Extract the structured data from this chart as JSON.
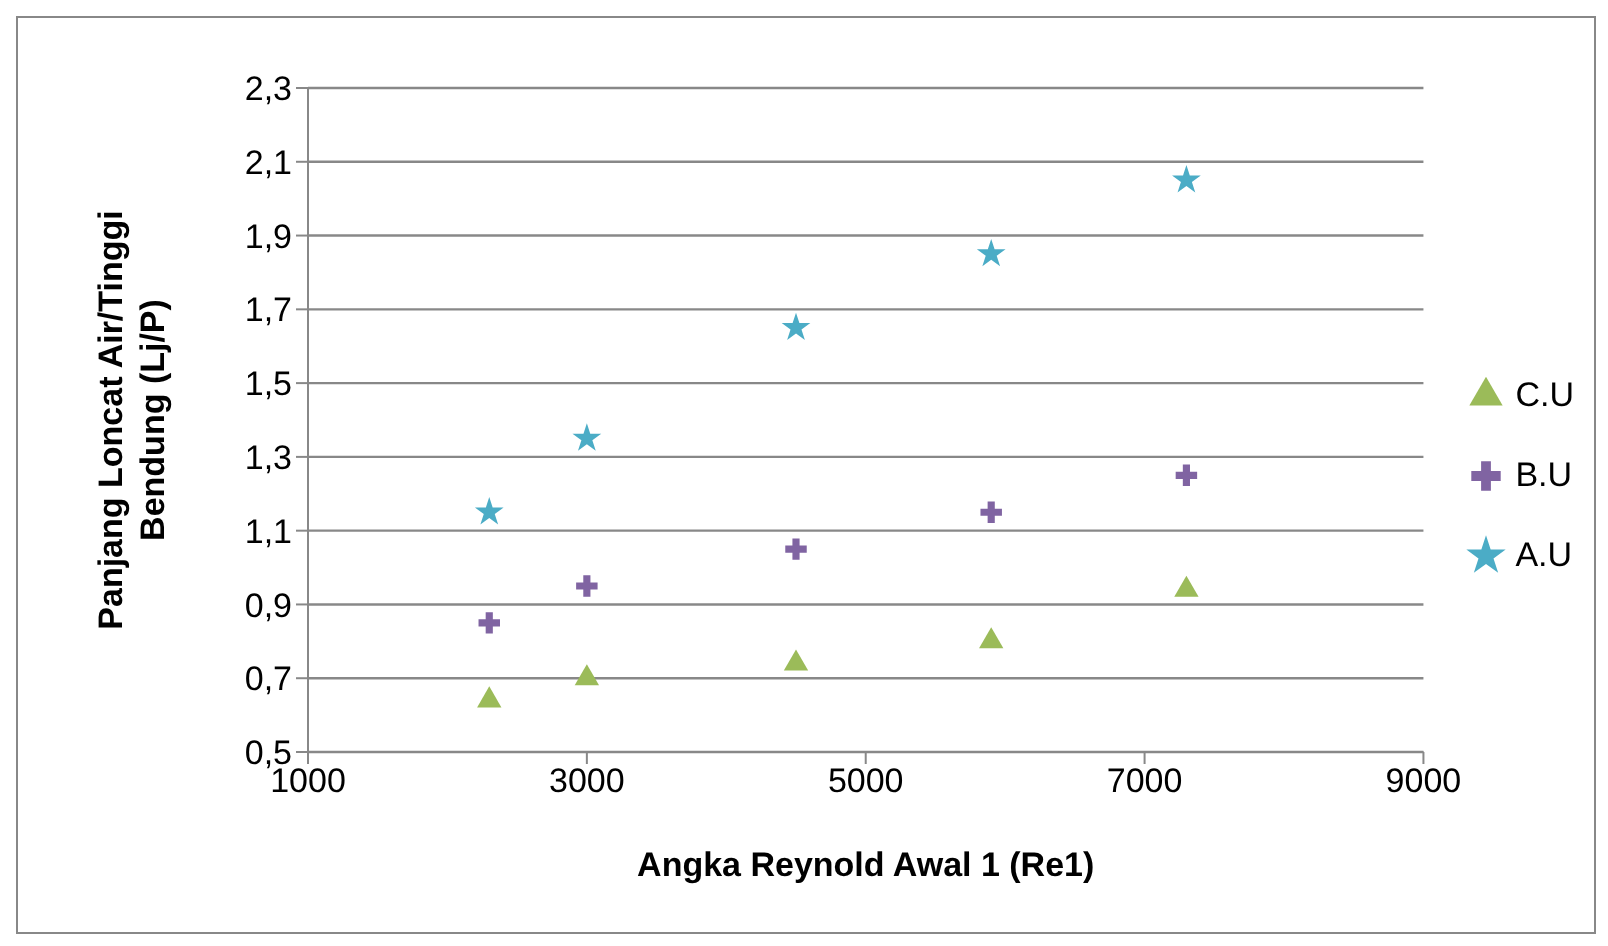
{
  "chart_data": {
    "type": "scatter",
    "xlabel": "Angka Reynold Awal 1 (Re1)",
    "ylabel": "Panjang Loncat Air/Tinggi Bendung (Lj/P)",
    "x": [
      2300,
      3000,
      4500,
      5900,
      7300
    ],
    "series": [
      {
        "name": "C.U",
        "color": "#9bbb59",
        "marker": "triangle",
        "values": [
          0.64,
          0.7,
          0.74,
          0.8,
          0.94
        ]
      },
      {
        "name": "B.U",
        "color": "#8064a2",
        "marker": "cross",
        "values": [
          0.85,
          0.95,
          1.05,
          1.15,
          1.25
        ]
      },
      {
        "name": "A.U",
        "color": "#4bacc6",
        "marker": "star",
        "values": [
          1.15,
          1.35,
          1.65,
          1.85,
          2.05
        ]
      }
    ],
    "xlim": [
      1000,
      9000
    ],
    "xticks": [
      1000,
      3000,
      5000,
      7000,
      9000
    ],
    "ylim": [
      0.5,
      2.3
    ],
    "yticks": [
      {
        "value": 0.5,
        "label": "0,5"
      },
      {
        "value": 0.7,
        "label": "0,7"
      },
      {
        "value": 0.9,
        "label": "0,9"
      },
      {
        "value": 1.1,
        "label": "1,1"
      },
      {
        "value": 1.3,
        "label": "1,3"
      },
      {
        "value": 1.5,
        "label": "1,5"
      },
      {
        "value": 1.7,
        "label": "1,7"
      },
      {
        "value": 1.9,
        "label": "1,9"
      },
      {
        "value": 2.1,
        "label": "2,1"
      },
      {
        "value": 2.3,
        "label": "2,3"
      }
    ],
    "grid": "y",
    "legend": "right"
  }
}
